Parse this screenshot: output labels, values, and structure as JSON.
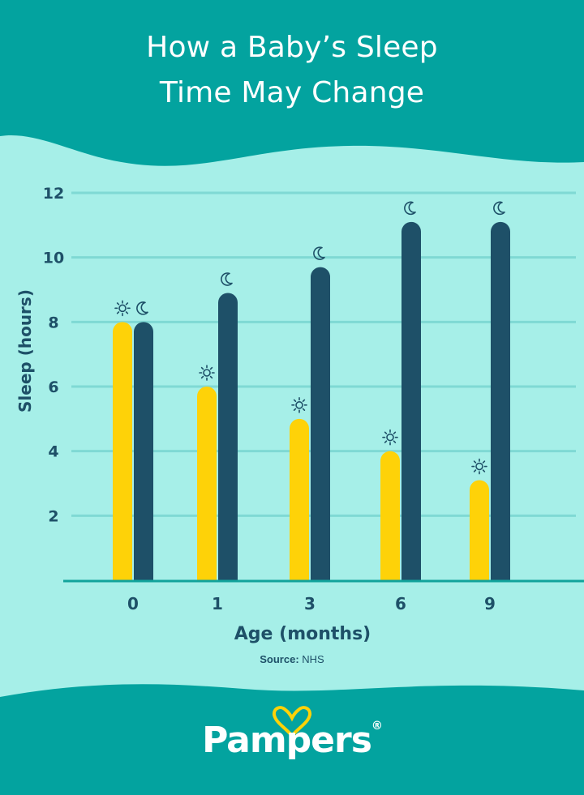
{
  "header": {
    "title_line1": "How a Baby’s Sleep",
    "title_line2": "Time May Change"
  },
  "colors": {
    "header_bg": "#03a39f",
    "panel_bg": "#a6efe8",
    "gridline": "#7fd9d4",
    "axis": "#11a39b",
    "day_bar": "#fed208",
    "night_bar": "#1e5068",
    "text_dark": "#1e5068"
  },
  "chart_data": {
    "type": "bar",
    "categories": [
      "0",
      "1",
      "3",
      "6",
      "9"
    ],
    "series": [
      {
        "name": "Day sleep",
        "icon": "sun-icon",
        "values": [
          8,
          6,
          5,
          4,
          3.1
        ]
      },
      {
        "name": "Night sleep",
        "icon": "moon-icon",
        "values": [
          8,
          8.9,
          9.7,
          11.1,
          11.1
        ]
      }
    ],
    "yticks": [
      "2",
      "4",
      "6",
      "8",
      "10",
      "12"
    ],
    "ylim": [
      0,
      12
    ],
    "xlabel": "Age (months)",
    "ylabel": "Sleep (hours)",
    "grid": true
  },
  "source": {
    "label": "Source:",
    "value": "NHS"
  },
  "brand": {
    "name": "Pampers",
    "mark": "®"
  }
}
